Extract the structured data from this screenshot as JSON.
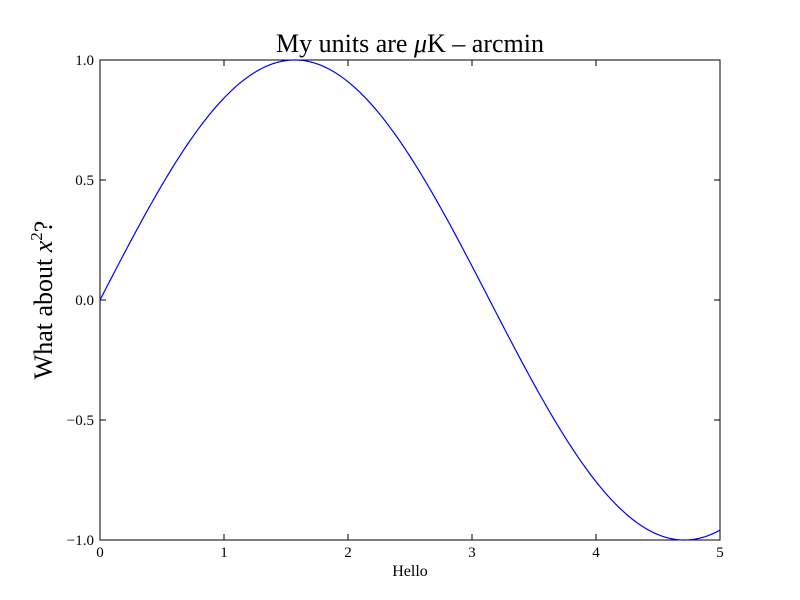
{
  "chart_data": {
    "type": "line",
    "title": {
      "prefix": "My units are ",
      "math": "μ",
      "suffix": "K – arcmin"
    },
    "xlabel": "Hello",
    "ylabel": {
      "prefix": "What about ",
      "math": "x",
      "superscript": "2",
      "suffix": "?"
    },
    "xlim": [
      0,
      5
    ],
    "ylim": [
      -1.0,
      1.0
    ],
    "xticks": [
      0,
      1,
      2,
      3,
      4,
      5
    ],
    "xtick_labels": [
      "0",
      "1",
      "2",
      "3",
      "4",
      "5"
    ],
    "yticks": [
      -1.0,
      -0.5,
      0.0,
      0.5,
      1.0
    ],
    "ytick_labels": [
      "−1.0",
      "−0.5",
      "0.0",
      "0.5",
      "1.0"
    ],
    "grid": false,
    "series": [
      {
        "function": "sin(x)",
        "color": "#0000ff",
        "x": [
          0,
          0.25,
          0.5,
          0.75,
          1.0,
          1.25,
          1.5,
          1.75,
          2.0,
          2.25,
          2.5,
          2.75,
          3.0,
          3.25,
          3.5,
          3.75,
          4.0,
          4.25,
          4.5,
          4.75,
          5.0
        ],
        "y": [
          0.0,
          0.247,
          0.479,
          0.682,
          0.841,
          0.949,
          0.997,
          0.984,
          0.909,
          0.778,
          0.598,
          0.382,
          0.141,
          -0.108,
          -0.351,
          -0.572,
          -0.757,
          -0.895,
          -0.978,
          -0.999,
          -0.959
        ]
      }
    ]
  }
}
